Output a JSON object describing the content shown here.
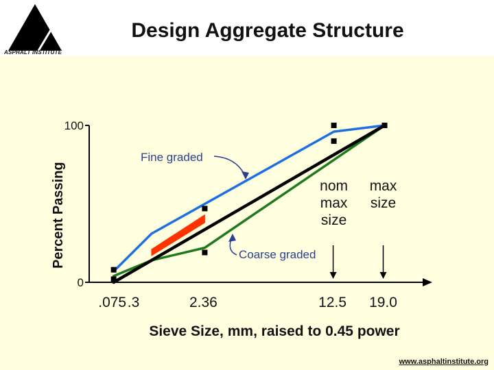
{
  "header": {
    "title": "Design Aggregate Structure",
    "logo_text": "ASPHALT INSTITUTE"
  },
  "footer": {
    "url": "www.asphaltinstitute.org"
  },
  "colors": {
    "background": "#FFFFE0",
    "fine": "#1E6FE0",
    "coarse": "#1F7A1F",
    "maxdensity": "#000000",
    "restricted_zone": "#FF3300",
    "annotation": "#2B3F8F"
  },
  "chart_data": {
    "type": "line",
    "title": "Design Aggregate Structure",
    "xlabel": "Sieve Size, mm, raised to 0.45 power",
    "ylabel": "Percent Passing",
    "x_scale": "power 0.45",
    "xlim": [
      0,
      25.1
    ],
    "ylim": [
      0,
      100
    ],
    "x_tick_labels": [
      ".075",
      ".3",
      "2.36",
      "12.5",
      "19.0"
    ],
    "x_tick_values": [
      0.075,
      0.3,
      2.36,
      12.5,
      19.0
    ],
    "y_tick_labels": [
      "0",
      "100"
    ],
    "y_tick_values": [
      0,
      100
    ],
    "series": [
      {
        "name": "Fine graded",
        "style": "line",
        "x": [
          0.075,
          0.6,
          12.5,
          19.0
        ],
        "y": [
          7,
          31,
          96,
          100
        ]
      },
      {
        "name": "Coarse graded",
        "style": "line",
        "x": [
          0.075,
          0.6,
          2.36,
          19.0
        ],
        "y": [
          4,
          14,
          22,
          100
        ]
      },
      {
        "name": "",
        "style": "line",
        "x": [
          0.075,
          19.0
        ],
        "y": [
          0,
          100
        ]
      },
      {
        "name": "",
        "style": "markers",
        "x": [
          0.075,
          0.075,
          2.36,
          2.36,
          12.5,
          12.5,
          19.0
        ],
        "y": [
          8,
          2,
          47,
          19,
          100,
          90,
          100
        ]
      }
    ],
    "restricted_zone": {
      "x": [
        0.6,
        2.36
      ],
      "lower": [
        17,
        38
      ],
      "upper": [
        21,
        43
      ]
    },
    "annotations": [
      {
        "text": "Fine graded",
        "x": 1.6,
        "y": 78
      },
      {
        "text": "Coarse graded",
        "x": 6.7,
        "y": 12
      },
      {
        "text": "nom max size",
        "x": 12.5
      },
      {
        "text": "max size",
        "x": 19.0
      }
    ]
  }
}
